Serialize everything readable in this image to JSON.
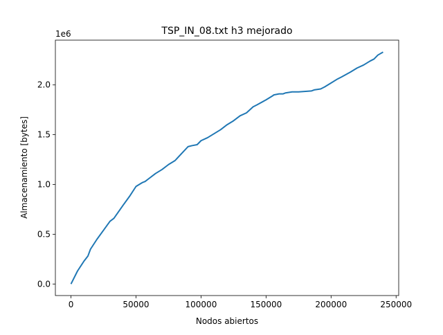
{
  "chart_data": {
    "type": "line",
    "title": "TSP_IN_08.txt h3 mejorado",
    "xlabel": "Nodos abiertos",
    "ylabel": "Almacenamiento [bytes]",
    "y_offset_label": "1e6",
    "xlim": [
      -12000,
      252000
    ],
    "ylim": [
      -0.116,
      2.45
    ],
    "x_ticks": [
      0,
      50000,
      100000,
      150000,
      200000,
      250000
    ],
    "x_tick_labels": [
      "0",
      "50000",
      "100000",
      "150000",
      "200000",
      "250000"
    ],
    "y_ticks": [
      0.0,
      0.5,
      1.0,
      1.5,
      2.0
    ],
    "y_tick_labels": [
      "0.0",
      "0.5",
      "1.0",
      "1.5",
      "2.0"
    ],
    "grid": false,
    "series": [
      {
        "color": "#1f77b4",
        "x": [
          0,
          5000,
          10000,
          13000,
          15000,
          20000,
          25000,
          30000,
          33000,
          40000,
          45000,
          50000,
          55000,
          57000,
          60000,
          65000,
          70000,
          75000,
          80000,
          85000,
          90000,
          93000,
          97000,
          100000,
          105000,
          110000,
          115000,
          120000,
          125000,
          130000,
          135000,
          140000,
          143000,
          150000,
          155000,
          156000,
          160000,
          163000,
          165000,
          170000,
          175000,
          185000,
          187000,
          192000,
          195000,
          200000,
          205000,
          208000,
          215000,
          220000,
          225000,
          230000,
          233000,
          236000,
          240000
        ],
        "y": [
          0.0,
          0.13,
          0.23,
          0.28,
          0.35,
          0.45,
          0.54,
          0.63,
          0.66,
          0.79,
          0.88,
          0.98,
          1.02,
          1.03,
          1.06,
          1.11,
          1.15,
          1.2,
          1.24,
          1.31,
          1.38,
          1.39,
          1.4,
          1.44,
          1.47,
          1.51,
          1.55,
          1.6,
          1.64,
          1.69,
          1.72,
          1.78,
          1.8,
          1.85,
          1.89,
          1.9,
          1.91,
          1.91,
          1.92,
          1.93,
          1.93,
          1.94,
          1.95,
          1.96,
          1.98,
          2.02,
          2.06,
          2.08,
          2.13,
          2.17,
          2.2,
          2.24,
          2.26,
          2.3,
          2.33
        ]
      }
    ]
  }
}
